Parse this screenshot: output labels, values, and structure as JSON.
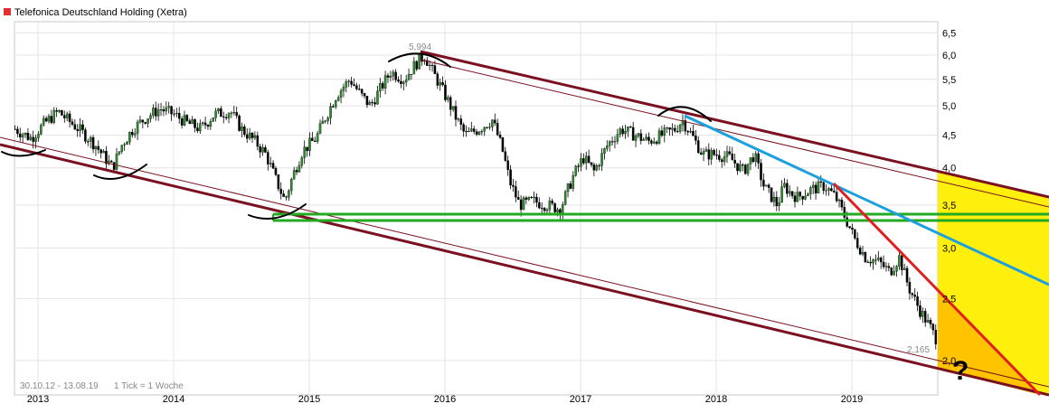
{
  "header": {
    "title": "Telefonica Deutschland Holding (Xetra)",
    "marker_color": "#e03030"
  },
  "footer": {
    "range": "30.10.12 - 13.08.19",
    "tick_info": "1 Tick = 1 Woche"
  },
  "colors": {
    "up_candle": "#2e8b2e",
    "down_candle": "#000000",
    "channel": "#7a1020",
    "support": "#22aa22",
    "trend_blue": "#1ea0dc",
    "trend_red": "#e02020",
    "future_fill": "#ffee00",
    "future_fill_2": "#ffc000"
  },
  "chart_data": {
    "type": "candlestick",
    "title": "Telefonica Deutschland Holding (Xetra)",
    "x_tick_labels": [
      "2013",
      "2014",
      "2015",
      "2016",
      "2017",
      "2018",
      "2019"
    ],
    "y_tick_labels": [
      "2,0",
      "2,5",
      "3,0",
      "3,5",
      "4,0",
      "4,5",
      "5,0",
      "5,5",
      "6,0",
      "6,5"
    ],
    "y_scale": "log",
    "ylim": [
      1.9,
      6.6
    ],
    "annotations": [
      {
        "label": "5,994",
        "date": "2015.89",
        "value": 5.994
      },
      {
        "label": "2,165",
        "date": "2019.62",
        "value": 2.165
      },
      {
        "label": "?",
        "date": "2019.84",
        "value": 1.95
      }
    ],
    "series": [
      {
        "dates": [
          2012.83,
          2012.95,
          2013.05,
          2013.15,
          2013.22,
          2013.3,
          2013.42,
          2013.55,
          2013.62,
          2013.7,
          2013.8,
          2013.9,
          2014.0,
          2014.1,
          2014.2,
          2014.3,
          2014.42,
          2014.5,
          2014.6,
          2014.68,
          2014.75,
          2014.82,
          2014.88,
          2014.95,
          2015.05,
          2015.12,
          2015.2,
          2015.3,
          2015.38,
          2015.45,
          2015.52,
          2015.6,
          2015.7,
          2015.78,
          2015.85,
          2015.9,
          2015.95,
          2016.0,
          2016.08,
          2016.15,
          2016.25,
          2016.35,
          2016.42,
          2016.48,
          2016.55,
          2016.65,
          2016.75,
          2016.85,
          2016.95,
          2017.02,
          2017.1,
          2017.2,
          2017.3,
          2017.4,
          2017.5,
          2017.6,
          2017.7,
          2017.75,
          2017.82,
          2017.9,
          2018.0,
          2018.1,
          2018.2,
          2018.28,
          2018.35,
          2018.45,
          2018.5,
          2018.55,
          2018.6,
          2018.7,
          2018.8,
          2018.88,
          2018.95,
          2019.02,
          2019.1,
          2019.2,
          2019.28,
          2019.35,
          2019.42,
          2019.5,
          2019.58,
          2019.62
        ],
        "values": [
          4.6,
          4.45,
          4.7,
          4.9,
          4.75,
          4.6,
          4.35,
          4.0,
          4.35,
          4.6,
          4.8,
          4.95,
          4.85,
          4.7,
          4.6,
          4.85,
          4.9,
          4.6,
          4.4,
          4.2,
          3.85,
          3.55,
          3.9,
          4.25,
          4.45,
          4.8,
          5.2,
          5.5,
          5.2,
          5.0,
          5.3,
          5.65,
          5.5,
          5.8,
          5.994,
          5.7,
          5.45,
          5.2,
          4.8,
          4.5,
          4.6,
          4.75,
          4.3,
          3.8,
          3.5,
          3.55,
          3.5,
          3.45,
          3.9,
          4.15,
          3.95,
          4.35,
          4.6,
          4.5,
          4.4,
          4.5,
          4.6,
          4.75,
          4.5,
          4.2,
          4.2,
          4.15,
          3.95,
          4.2,
          3.75,
          3.5,
          3.75,
          3.65,
          3.6,
          3.7,
          3.75,
          3.6,
          3.35,
          3.1,
          2.9,
          2.85,
          2.75,
          2.9,
          2.6,
          2.4,
          2.25,
          2.165
        ]
      }
    ]
  }
}
